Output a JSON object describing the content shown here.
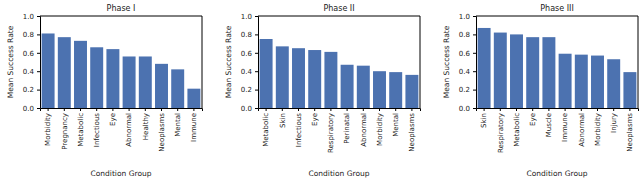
{
  "chart_data": [
    {
      "type": "bar",
      "title": "Phase I",
      "x_label": "Condition Group",
      "y_label": "Mean Success Rate",
      "categories": [
        "Morbidity",
        "Pregnancy",
        "Metabolic",
        "Infectious",
        "Eye",
        "Abnormal",
        "Healthy",
        "Neoplasms",
        "Mental",
        "Immune"
      ],
      "values": [
        0.81,
        0.77,
        0.73,
        0.66,
        0.64,
        0.56,
        0.56,
        0.48,
        0.42,
        0.21
      ],
      "color": "#4c72b0",
      "ylim": [
        0,
        1
      ],
      "yticks": [
        {
          "value": 0,
          "label": "0.0"
        },
        0.2,
        0.4,
        0.6,
        0.8,
        {
          "value": 1,
          "label": "1.0"
        }
      ],
      "grid": false
    },
    {
      "type": "bar",
      "title": "Phase II",
      "x_label": "Condition Group",
      "y_label": "Mean Success Rate",
      "categories": [
        "Metabolic",
        "Skin",
        "Infectious",
        "Eye",
        "Respiratory",
        "Perinatal",
        "Abnormal",
        "Morbidity",
        "Mental",
        "Neoplasms"
      ],
      "values": [
        0.75,
        0.67,
        0.65,
        0.63,
        0.61,
        0.47,
        0.46,
        0.4,
        0.39,
        0.36
      ],
      "color": "#4c72b0",
      "ylim": [
        0,
        1
      ],
      "yticks": [
        {
          "value": 0,
          "label": "0.0"
        },
        0.2,
        0.4,
        0.6,
        0.8,
        {
          "value": 1,
          "label": "1.0"
        }
      ],
      "grid": false
    },
    {
      "type": "bar",
      "title": "Phase III",
      "x_label": "Condition Group",
      "y_label": "Mean Success Rate",
      "categories": [
        "Skin",
        "Respiratory",
        "Metabolic",
        "Eye",
        "Muscle",
        "Immune",
        "Abnormal",
        "Morbidity",
        "Injury",
        "Neoplasms"
      ],
      "values": [
        0.87,
        0.82,
        0.8,
        0.77,
        0.77,
        0.59,
        0.58,
        0.57,
        0.53,
        0.39
      ],
      "color": "#4c72b0",
      "ylim": [
        0,
        1
      ],
      "yticks": [
        {
          "value": 0,
          "label": "0.0"
        },
        0.2,
        0.4,
        0.6,
        0.8,
        {
          "value": 1,
          "label": "1.0"
        }
      ],
      "grid": false
    }
  ]
}
